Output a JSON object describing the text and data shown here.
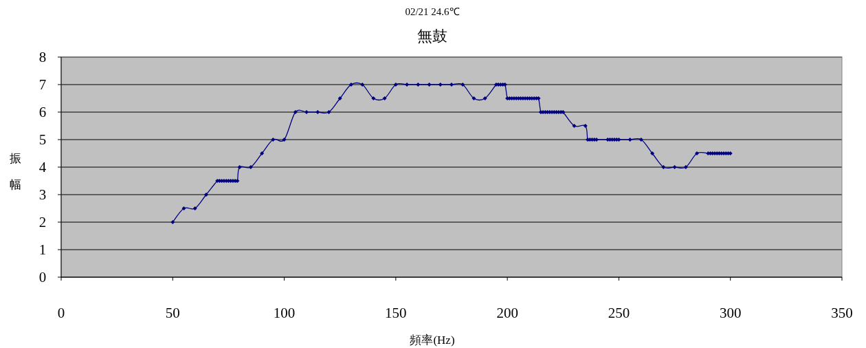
{
  "chart_data": {
    "type": "line",
    "title": "02/21 24.6℃",
    "subtitle": "無鼓",
    "xlabel": "頻率(Hz)",
    "ylabel": "振幅",
    "x": [
      50,
      55,
      60,
      65,
      70,
      71,
      72,
      73,
      74,
      75,
      76,
      77,
      78,
      79,
      80,
      85,
      90,
      95,
      100,
      105,
      110,
      115,
      120,
      125,
      130,
      135,
      140,
      145,
      150,
      155,
      160,
      165,
      170,
      175,
      180,
      185,
      190,
      195,
      196,
      197,
      198,
      199,
      200,
      201,
      202,
      203,
      204,
      205,
      206,
      207,
      208,
      209,
      210,
      211,
      212,
      213,
      214,
      215,
      216,
      217,
      218,
      219,
      220,
      221,
      222,
      223,
      224,
      225,
      230,
      235,
      236,
      237,
      238,
      239,
      240,
      245,
      246,
      247,
      248,
      249,
      250,
      255,
      260,
      265,
      270,
      275,
      280,
      285,
      290,
      291,
      292,
      293,
      294,
      295,
      296,
      297,
      298,
      299,
      300
    ],
    "series": [
      {
        "color": "#000080",
        "values": [
          2,
          2.5,
          2.5,
          3,
          3.5,
          3.5,
          3.5,
          3.5,
          3.5,
          3.5,
          3.5,
          3.5,
          3.5,
          3.5,
          4,
          4,
          4.5,
          5,
          5,
          6,
          6,
          6,
          6,
          6.5,
          7,
          7,
          6.5,
          6.5,
          7,
          7,
          7,
          7,
          7,
          7,
          7,
          6.5,
          6.5,
          7,
          7,
          7,
          7,
          7,
          6.5,
          6.5,
          6.5,
          6.5,
          6.5,
          6.5,
          6.5,
          6.5,
          6.5,
          6.5,
          6.5,
          6.5,
          6.5,
          6.5,
          6.5,
          6,
          6,
          6,
          6,
          6,
          6,
          6,
          6,
          6,
          6,
          6,
          5.5,
          5.5,
          5,
          5,
          5,
          5,
          5,
          5,
          5,
          5,
          5,
          5,
          5,
          5,
          5,
          4.5,
          4,
          4,
          4,
          4.5,
          4.5,
          4.5,
          4.5,
          4.5,
          4.5,
          4.5,
          4.5,
          4.5,
          4.5,
          4.5,
          4.5
        ]
      }
    ],
    "xlim": [
      0,
      350
    ],
    "xticks": [
      0,
      50,
      100,
      150,
      200,
      250,
      300,
      350
    ],
    "ylim": [
      0,
      8
    ],
    "yticks": [
      0,
      1,
      2,
      3,
      4,
      5,
      6,
      7,
      8
    ],
    "grid": "y",
    "marker": "diamond",
    "line_style": "solid"
  }
}
